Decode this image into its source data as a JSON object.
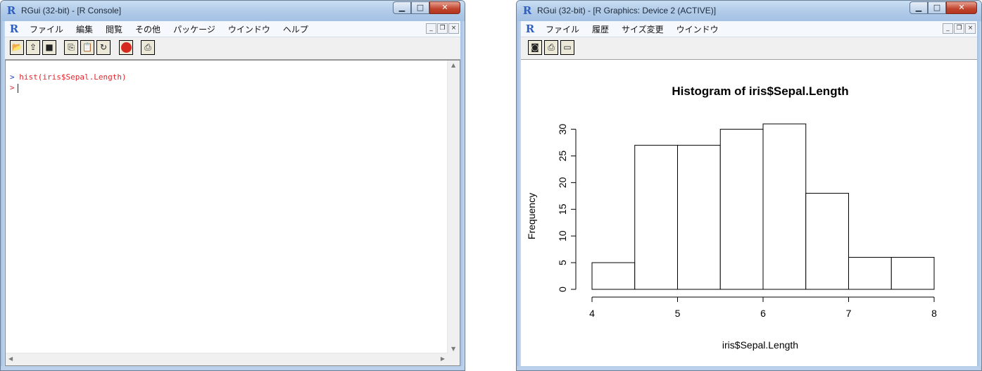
{
  "console_window": {
    "title": "RGui (32-bit) - [R Console]",
    "menu": [
      "ファイル",
      "編集",
      "閲覧",
      "その他",
      "パッケージ",
      "ウインドウ",
      "ヘルプ"
    ],
    "toolbar_icons": [
      "open-script-icon",
      "load-workspace-icon",
      "save-workspace-icon",
      "copy-icon",
      "paste-icon",
      "copy-paste-icon",
      "stop-icon",
      "print-icon"
    ],
    "lines": [
      {
        "prompt": ">",
        "text": "hist(iris$Sepal.Length)"
      },
      {
        "prompt": ">",
        "text": ""
      }
    ]
  },
  "graphics_window": {
    "title": "RGui (32-bit) - [R Graphics: Device 2 (ACTIVE)]",
    "menu": [
      "ファイル",
      "履歴",
      "サイズ変更",
      "ウインドウ"
    ],
    "toolbar_icons": [
      "copy-metafile-icon",
      "print-icon",
      "console-icon"
    ]
  },
  "chart_data": {
    "type": "bar",
    "title": "Histogram of iris$Sepal.Length",
    "xlabel": "iris$Sepal.Length",
    "ylabel": "Frequency",
    "bin_edges": [
      4.0,
      4.5,
      5.0,
      5.5,
      6.0,
      6.5,
      7.0,
      7.5,
      8.0
    ],
    "values": [
      5,
      27,
      27,
      30,
      31,
      18,
      6,
      6
    ],
    "xlim": [
      4,
      8
    ],
    "ylim": [
      0,
      31
    ],
    "xticks": [
      "4",
      "5",
      "6",
      "7",
      "8"
    ],
    "yticks": [
      "0",
      "5",
      "10",
      "15",
      "20",
      "25",
      "30"
    ],
    "grid": false,
    "color": "#ffffff",
    "edge_color": "#000000"
  }
}
